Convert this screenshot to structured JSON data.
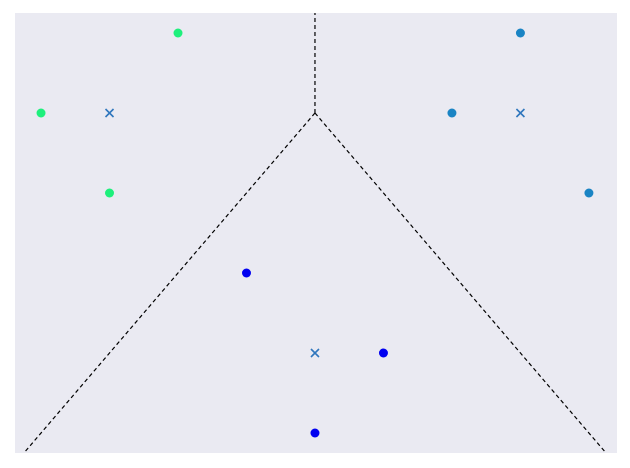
{
  "chart_data": {
    "type": "scatter",
    "xlim": [
      -0.38,
      8.41
    ],
    "ylim": [
      -0.25,
      5.25
    ],
    "background": "#eaeaf2",
    "series": [
      {
        "color": "#1ef07c",
        "x": [
          2,
          0,
          1
        ],
        "y": [
          5,
          4,
          3
        ]
      },
      {
        "color": "#1a84c4",
        "x": [
          7,
          6,
          8
        ],
        "y": [
          5,
          4,
          3
        ]
      },
      {
        "color": "#0000f0",
        "x": [
          3,
          5,
          4
        ],
        "y": [
          2,
          1,
          0
        ]
      }
    ],
    "centroids": {
      "color": "#2f76bd",
      "x": [
        1,
        7,
        4
      ],
      "y": [
        4,
        4,
        1
      ]
    },
    "boundaries": [
      {
        "x": [
          4,
          4
        ],
        "y": [
          4,
          5.25
        ]
      },
      {
        "x": [
          4,
          -0.25
        ],
        "y": [
          4,
          -0.25
        ]
      },
      {
        "x": [
          4,
          8.25
        ],
        "y": [
          4,
          -0.25
        ]
      }
    ]
  }
}
